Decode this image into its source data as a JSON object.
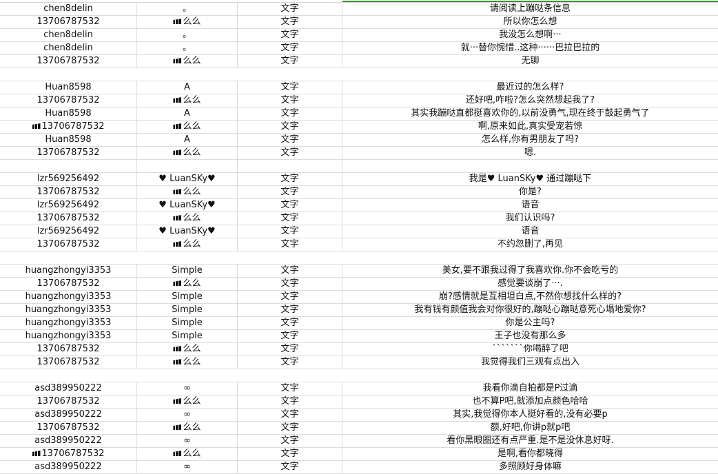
{
  "accent_color": "#3f8f2f",
  "prefix_icon": "signal-glyph-icon",
  "rows": [
    {
      "id": "chen8delin",
      "nick": "。",
      "type": "文字",
      "msg": "请阅读上蹦哒条信息"
    },
    {
      "id": "13706787532",
      "nick": "么么",
      "nick_icon": true,
      "type": "文字",
      "msg": "所以你怎么想"
    },
    {
      "id": "chen8delin",
      "nick": "。",
      "type": "文字",
      "msg": "我没怎么想啊···"
    },
    {
      "id": "chen8delin",
      "nick": "。",
      "type": "文字",
      "msg": "就···替你惋惜..这种······巴拉巴拉的"
    },
    {
      "id": "13706787532",
      "nick": "么么",
      "nick_icon": true,
      "type": "文字",
      "msg": "无聊"
    },
    {
      "blank": true
    },
    {
      "id": "Huan8598",
      "nick": "A",
      "type": "文字",
      "msg": "最近过的怎么样?"
    },
    {
      "id": "13706787532",
      "nick": "么么",
      "nick_icon": true,
      "type": "文字",
      "msg": "还好吧,咋啦?怎么突然想起我了?"
    },
    {
      "id": "Huan8598",
      "nick": "A",
      "type": "文字",
      "msg": "其实我蹦哒直都挺喜欢你的,以前没勇气,现在终于鼓起勇气了"
    },
    {
      "id": "13706787532",
      "id_icon": true,
      "nick": "么么",
      "nick_icon": true,
      "type": "文字",
      "msg": "啊,原来如此,真实受宠若惊"
    },
    {
      "id": "Huan8598",
      "nick": "A",
      "type": "文字",
      "msg": "怎么样,你有男朋友了吗?"
    },
    {
      "id": "13706787532",
      "nick": "么么",
      "nick_icon": true,
      "type": "文字",
      "msg": "嗯."
    },
    {
      "blank": true,
      "lined": true
    },
    {
      "id": "lzr569256492",
      "nick": "♥ LuanSKy♥",
      "type": "文字",
      "msg": "我是♥ LuanSKy♥ 通过蹦哒下"
    },
    {
      "id": "13706787532",
      "nick": "么么",
      "nick_icon": true,
      "type": "文字",
      "msg": "你是?"
    },
    {
      "id": "lzr569256492",
      "nick": "♥ LuanSKy♥",
      "type": "文字",
      "msg": "语音"
    },
    {
      "id": "13706787532",
      "nick": "么么",
      "nick_icon": true,
      "type": "文字",
      "msg": "我们认识吗?"
    },
    {
      "id": "lzr569256492",
      "nick": "♥ LuanSKy♥",
      "type": "文字",
      "msg": "语音"
    },
    {
      "id": "13706787532",
      "nick": "么么",
      "nick_icon": true,
      "type": "文字",
      "msg": "不约忽删了,再见"
    },
    {
      "blank": true
    },
    {
      "id": "huangzhongyi3353",
      "nick": "Simple",
      "type": "文字",
      "msg": "美女,要不跟我过得了我喜欢你.你不会吃亏的"
    },
    {
      "id": "13706787532",
      "nick": "么么",
      "nick_icon": true,
      "type": "文字",
      "msg": "感觉要谈崩了···."
    },
    {
      "id": "huangzhongyi3353",
      "nick": "Simple",
      "type": "文字",
      "msg": "崩?感情就是互相坦白点,不然你想找什么样的?"
    },
    {
      "id": "huangzhongyi3353",
      "nick": "Simple",
      "type": "文字",
      "msg": "我有钱有颜值我会对你很好的,蹦哒心蹦哒意死心塌地爱你?"
    },
    {
      "id": "huangzhongyi3353",
      "nick": "Simple",
      "type": "文字",
      "msg": "你是公主吗?"
    },
    {
      "id": "huangzhongyi3353",
      "nick": "Simple",
      "type": "文字",
      "msg": "王子也没有那么多"
    },
    {
      "id": "13706787532",
      "nick": "么么",
      "nick_icon": true,
      "type": "文字",
      "msg": "```````你喝醉了吧"
    },
    {
      "id": "13706787532",
      "nick": "么么",
      "nick_icon": true,
      "type": "文字",
      "msg": "我觉得我们三观有点出入"
    },
    {
      "blank": true
    },
    {
      "id": "asd389950222",
      "nick": "∞",
      "type": "文字",
      "msg": "我看你滴自拍都是P过滴"
    },
    {
      "id": "13706787532",
      "nick": "么么",
      "nick_icon": true,
      "type": "文字",
      "msg": "也不算P吧,就添加点颜色哈哈"
    },
    {
      "id": "asd389950222",
      "nick": "∞",
      "type": "文字",
      "msg": "其实,我觉得你本人挺好看的,没有必要p"
    },
    {
      "id": "13706787532",
      "nick": "么么",
      "nick_icon": true,
      "type": "文字",
      "msg": "额,好吧,你讲p就p吧"
    },
    {
      "id": "asd389950222",
      "nick": "∞",
      "type": "文字",
      "msg": "看你黑眼圈还有点严重.是不是没休息好呀."
    },
    {
      "id": "13706787532",
      "id_icon": true,
      "nick": "么么",
      "nick_icon": true,
      "type": "文字",
      "msg": "是啊,看你都晓得"
    },
    {
      "id": "asd389950222",
      "nick": "∞",
      "type": "文字",
      "msg": "多照顾好身体嘛"
    }
  ]
}
